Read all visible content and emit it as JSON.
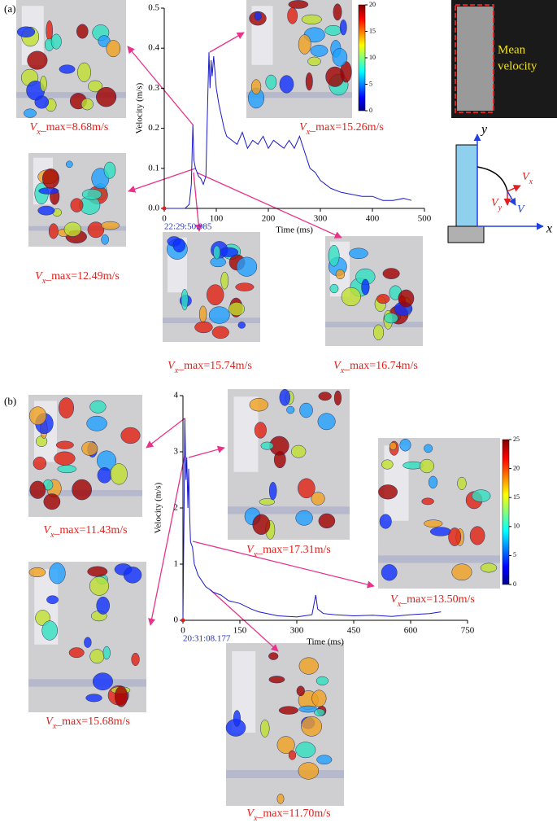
{
  "chart_data": [
    {
      "type": "line",
      "panel_label": "(a)",
      "x_label": "Time (ms)",
      "y_label": "Velocity (m/s)",
      "timestamp": "22:29:50.985",
      "x": [
        0,
        10,
        20,
        30,
        40,
        48,
        52,
        55,
        57,
        60,
        63,
        66,
        70,
        75,
        80,
        84,
        86,
        88,
        90,
        92,
        95,
        100,
        105,
        110,
        115,
        120,
        130,
        140,
        150,
        160,
        170,
        180,
        190,
        200,
        210,
        220,
        230,
        240,
        250,
        260,
        265,
        270,
        280,
        290,
        300,
        320,
        340,
        360,
        380,
        400,
        420,
        440,
        460,
        475
      ],
      "values": [
        0,
        0,
        0,
        0,
        0,
        0.01,
        0.06,
        0.21,
        0.12,
        0.1,
        0.09,
        0.08,
        0.075,
        0.06,
        0.08,
        0.3,
        0.39,
        0.3,
        0.37,
        0.33,
        0.38,
        0.3,
        0.26,
        0.23,
        0.2,
        0.18,
        0.17,
        0.16,
        0.19,
        0.15,
        0.17,
        0.16,
        0.18,
        0.15,
        0.17,
        0.16,
        0.15,
        0.17,
        0.15,
        0.18,
        0.16,
        0.14,
        0.1,
        0.09,
        0.07,
        0.05,
        0.04,
        0.035,
        0.03,
        0.03,
        0.02,
        0.02,
        0.025,
        0.02
      ],
      "color": "#1a1acc",
      "xlim": [
        0,
        500
      ],
      "xticks": [
        0,
        100,
        200,
        300,
        400,
        500
      ],
      "ylim": [
        0,
        0.5
      ],
      "yticks": [
        {
          "value": 0,
          "label": "0.0"
        },
        0.1,
        0.2,
        0.3,
        0.4,
        0.5
      ],
      "snapshots": [
        {
          "symbol": "V",
          "subscript": "x",
          "text": "_max=8.68m/s"
        },
        {
          "symbol": "V",
          "subscript": "x",
          "text": "_max=15.26m/s"
        },
        {
          "symbol": "V",
          "subscript": "x",
          "text": "_max=12.49m/s"
        },
        {
          "symbol": "V",
          "subscript": "x",
          "text": "_max=15.74m/s"
        },
        {
          "symbol": "V",
          "subscript": "x",
          "text": "_max=16.74m/s"
        }
      ],
      "colorbar": {
        "lim": [
          0,
          20
        ],
        "ticks": [
          0,
          5,
          10,
          15,
          20
        ]
      },
      "inset": {
        "caption": [
          "Mean",
          "velocity"
        ],
        "axis_x": "x",
        "axis_y": "y",
        "vx": {
          "symbol": "V",
          "subscript": "x"
        },
        "vy": {
          "symbol": "V",
          "subscript": "y"
        },
        "v": "V"
      }
    },
    {
      "type": "line",
      "panel_label": "(b)",
      "x_label": "Time (ms)",
      "y_label": "Velocity (m/s)",
      "timestamp": "20:31:08.177",
      "x": [
        0,
        3,
        5,
        8,
        10,
        13,
        15,
        18,
        20,
        25,
        30,
        40,
        50,
        60,
        70,
        80,
        100,
        120,
        150,
        180,
        200,
        250,
        300,
        340,
        350,
        355,
        370,
        400,
        450,
        500,
        550,
        600,
        650,
        680
      ],
      "values": [
        0,
        2.0,
        3.6,
        2.5,
        2.9,
        2.0,
        2.7,
        1.8,
        1.4,
        1.3,
        1.0,
        0.8,
        0.7,
        0.6,
        0.55,
        0.5,
        0.45,
        0.35,
        0.3,
        0.2,
        0.15,
        0.08,
        0.06,
        0.1,
        0.45,
        0.2,
        0.12,
        0.1,
        0.08,
        0.09,
        0.07,
        0.1,
        0.12,
        0.15
      ],
      "color": "#1a1acc",
      "xlim": [
        0,
        750
      ],
      "xticks": [
        0,
        150,
        300,
        450,
        600,
        750
      ],
      "ylim": [
        0,
        4
      ],
      "yticks": [
        0,
        1,
        2,
        3,
        4
      ],
      "snapshots": [
        {
          "symbol": "V",
          "subscript": "x",
          "text": "_max=11.43m/s"
        },
        {
          "symbol": "V",
          "subscript": "x",
          "text": "_max=17.31m/s"
        },
        {
          "symbol": "V",
          "subscript": "x",
          "text": "_max=13.50m/s"
        },
        {
          "symbol": "V",
          "subscript": "x",
          "text": "_max=15.68m/s"
        },
        {
          "symbol": "V",
          "subscript": "x",
          "text": "_max=11.70m/s"
        }
      ],
      "colorbar": {
        "lim": [
          0,
          25
        ],
        "ticks": [
          0,
          5,
          10,
          15,
          20,
          25
        ]
      }
    }
  ]
}
